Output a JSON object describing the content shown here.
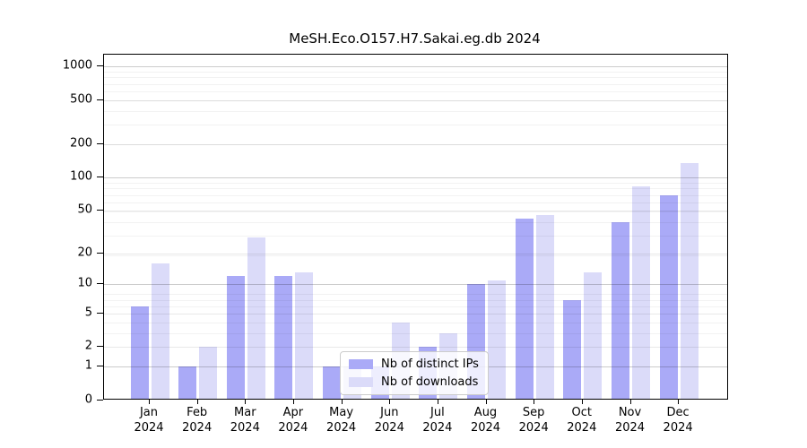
{
  "chart_data": {
    "type": "bar",
    "title": "MeSH.Eco.O157.H7.Sakai.eg.db 2024",
    "categories": [
      "Jan",
      "Feb",
      "Mar",
      "Apr",
      "May",
      "Jun",
      "Jul",
      "Aug",
      "Sep",
      "Oct",
      "Nov",
      "Dec"
    ],
    "year": "2024",
    "series": [
      {
        "name": "Nb of distinct IPs",
        "color": "#aaaaf7",
        "values": [
          6,
          1,
          12,
          12,
          1,
          1,
          2,
          10,
          42,
          7,
          39,
          68
        ]
      },
      {
        "name": "Nb of downloads",
        "color": "#dbdbf9",
        "values": [
          16,
          2,
          28,
          13,
          1,
          4,
          3,
          11,
          45,
          13,
          82,
          135
        ]
      }
    ],
    "y_ticks": [
      0,
      1,
      2,
      5,
      10,
      20,
      50,
      100,
      200,
      500,
      1000
    ],
    "y_scale": "log10(1+x)",
    "ylim": [
      0,
      1200
    ],
    "xlabel": "",
    "ylabel": "",
    "grid": true,
    "legend_position": "inside-lower-center"
  },
  "style": {
    "major_grid_values": [
      1,
      10,
      100,
      1000
    ],
    "labeled_minor_grid_values": [
      2,
      5,
      20,
      50,
      200,
      500
    ],
    "minor_grid_values": [
      3,
      4,
      6,
      7,
      8,
      19,
      29,
      39,
      49,
      59,
      69,
      79,
      89,
      199,
      299,
      399,
      499,
      599,
      699,
      799,
      899
    ],
    "major_grid_color": "rgba(0,0,0,0.20)",
    "labeled_grid_color": "rgba(0,0,0,0.09)",
    "minor_grid_color": "rgba(0,0,0,0.05)"
  }
}
